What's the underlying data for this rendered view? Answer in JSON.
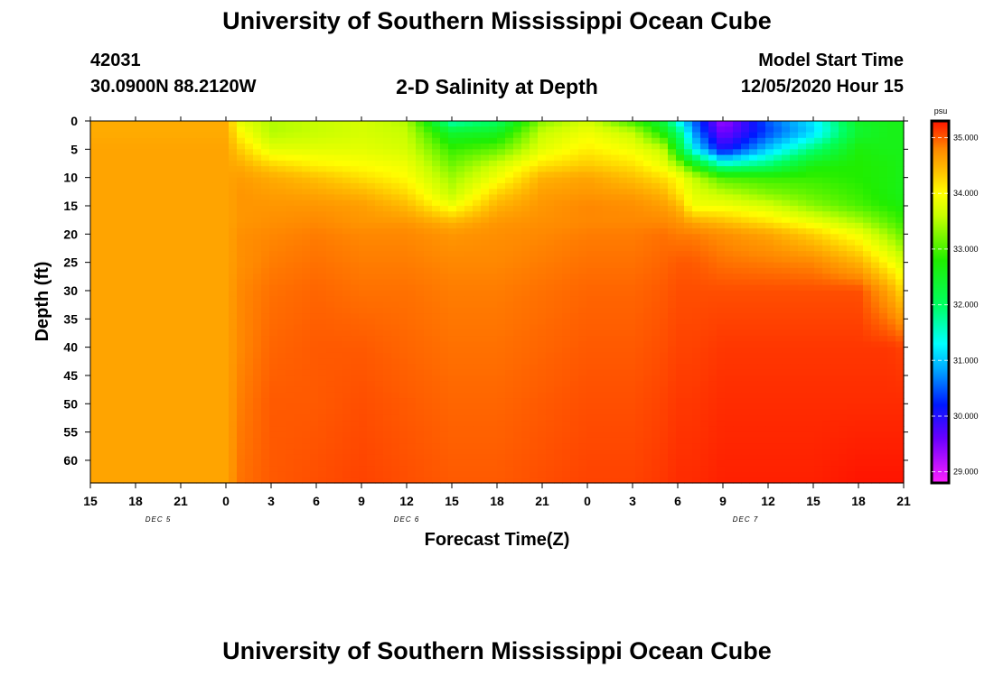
{
  "header": {
    "title": "University of Southern Mississippi Ocean Cube",
    "station_id": "42031",
    "coords": "30.0900N 88.2120W",
    "subtitle": "2-D Salinity at Depth",
    "model_start_label": "Model Start Time",
    "model_start_value": "12/05/2020 Hour 15"
  },
  "footer": {
    "title": "University of Southern Mississippi Ocean Cube"
  },
  "chart_data": {
    "type": "heatmap",
    "title": "2-D Salinity at Depth",
    "xlabel": "Forecast Time(Z)",
    "ylabel": "Depth (ft)",
    "x_tick_labels": [
      "15",
      "18",
      "21",
      "0",
      "3",
      "6",
      "9",
      "12",
      "15",
      "18",
      "21",
      "0",
      "3",
      "6",
      "9",
      "12",
      "15",
      "18",
      "21"
    ],
    "x_hours": [
      0,
      3,
      6,
      9,
      12,
      15,
      18,
      21,
      24,
      27,
      30,
      33,
      36,
      39,
      42,
      45,
      48,
      51,
      54
    ],
    "day_labels": [
      {
        "text": "DEC 5",
        "hour": 4.5
      },
      {
        "text": "DEC 6",
        "hour": 21
      },
      {
        "text": "DEC 7",
        "hour": 43.5
      }
    ],
    "y_ticks": [
      0,
      5,
      10,
      15,
      20,
      25,
      30,
      35,
      40,
      45,
      50,
      55,
      60
    ],
    "y_range": [
      0,
      64
    ],
    "x_range": [
      0,
      54
    ],
    "colorbar": {
      "unit": "psu",
      "range": [
        28.8,
        35.3
      ],
      "ticks": [
        "29.000",
        "30.000",
        "31.000",
        "32.000",
        "33.000",
        "34.000",
        "35.000"
      ],
      "tick_values": [
        29,
        30,
        31,
        32,
        33,
        34,
        35
      ],
      "stops": [
        {
          "v": 28.8,
          "c": "#ff20ff"
        },
        {
          "v": 29.6,
          "c": "#6a00ff"
        },
        {
          "v": 30.2,
          "c": "#0018ff"
        },
        {
          "v": 30.8,
          "c": "#00a0ff"
        },
        {
          "v": 31.3,
          "c": "#00ffff"
        },
        {
          "v": 32.0,
          "c": "#00ff60"
        },
        {
          "v": 32.8,
          "c": "#20ee00"
        },
        {
          "v": 33.6,
          "c": "#c8ff00"
        },
        {
          "v": 34.0,
          "c": "#ffff00"
        },
        {
          "v": 34.4,
          "c": "#ffc000"
        },
        {
          "v": 34.8,
          "c": "#ff8800"
        },
        {
          "v": 35.3,
          "c": "#ff1400"
        }
      ]
    },
    "salinity_field": {
      "depth_ft": [
        0,
        2,
        5,
        8,
        10,
        13,
        15,
        18,
        20,
        25,
        30,
        40,
        50,
        64
      ],
      "hours": [
        0,
        9,
        10,
        12,
        15,
        18,
        21,
        24,
        27,
        30,
        33,
        36,
        38,
        39,
        40,
        42,
        45,
        48,
        51,
        53,
        54
      ],
      "values": [
        [
          34.55,
          34.55,
          33.8,
          33.5,
          33.6,
          33.7,
          33.5,
          31.6,
          32.0,
          33.3,
          33.7,
          32.9,
          32.3,
          31.3,
          30.6,
          29.3,
          30.5,
          31.2,
          32.5,
          32.6,
          32.6
        ],
        [
          34.55,
          34.55,
          34.0,
          33.5,
          33.6,
          33.7,
          33.6,
          32.4,
          32.5,
          33.6,
          33.9,
          33.6,
          32.7,
          32.0,
          30.8,
          29.5,
          30.4,
          31.1,
          32.4,
          32.6,
          32.6
        ],
        [
          34.6,
          34.6,
          34.3,
          33.8,
          33.8,
          33.8,
          33.7,
          32.9,
          33.1,
          33.8,
          34.1,
          33.9,
          33.6,
          32.5,
          31.3,
          30.0,
          31.0,
          31.9,
          32.7,
          32.6,
          32.6
        ],
        [
          34.6,
          34.6,
          34.55,
          34.3,
          34.1,
          34.0,
          33.9,
          33.2,
          33.7,
          34.2,
          34.35,
          34.2,
          33.9,
          33.5,
          32.8,
          31.7,
          32.0,
          32.7,
          32.8,
          32.7,
          32.6
        ],
        [
          34.6,
          34.6,
          34.65,
          34.55,
          34.4,
          34.2,
          34.0,
          33.4,
          33.9,
          34.5,
          34.6,
          34.4,
          34.2,
          34.0,
          33.6,
          33.0,
          32.9,
          32.9,
          32.8,
          32.7,
          32.6
        ],
        [
          34.6,
          34.6,
          34.7,
          34.65,
          34.6,
          34.5,
          34.25,
          33.6,
          34.3,
          34.65,
          34.7,
          34.65,
          34.5,
          34.2,
          33.8,
          33.6,
          33.3,
          33.1,
          32.9,
          32.7,
          32.6
        ],
        [
          34.6,
          34.6,
          34.7,
          34.7,
          34.7,
          34.65,
          34.45,
          33.9,
          34.5,
          34.7,
          34.8,
          34.75,
          34.65,
          34.5,
          33.9,
          33.9,
          33.7,
          33.3,
          33.0,
          32.8,
          32.7
        ],
        [
          34.6,
          34.6,
          34.7,
          34.75,
          34.8,
          34.7,
          34.7,
          34.5,
          34.7,
          34.75,
          34.8,
          34.8,
          34.8,
          34.75,
          34.6,
          34.45,
          34.2,
          33.9,
          33.5,
          33.1,
          32.9
        ],
        [
          34.6,
          34.6,
          34.75,
          34.8,
          34.85,
          34.8,
          34.8,
          34.7,
          34.75,
          34.8,
          34.85,
          34.85,
          34.9,
          34.85,
          34.85,
          34.75,
          34.6,
          34.3,
          33.9,
          33.4,
          33.1
        ],
        [
          34.6,
          34.6,
          34.75,
          34.85,
          34.9,
          34.85,
          34.85,
          34.8,
          34.8,
          34.85,
          34.9,
          34.9,
          34.95,
          35.0,
          35.0,
          34.9,
          34.85,
          34.8,
          34.5,
          34.0,
          33.7
        ],
        [
          34.6,
          34.6,
          34.8,
          34.9,
          34.95,
          34.9,
          34.9,
          34.85,
          34.85,
          34.9,
          34.95,
          34.95,
          35.0,
          35.05,
          35.05,
          35.05,
          35.05,
          35.05,
          35.05,
          34.6,
          34.2
        ],
        [
          34.6,
          34.6,
          34.8,
          34.95,
          35.0,
          35.0,
          34.95,
          34.9,
          34.9,
          34.95,
          35.0,
          35.0,
          35.05,
          35.1,
          35.1,
          35.15,
          35.15,
          35.15,
          35.15,
          35.15,
          35.1
        ],
        [
          34.6,
          34.6,
          34.85,
          35.0,
          35.0,
          35.05,
          35.0,
          34.95,
          34.95,
          35.0,
          35.05,
          35.05,
          35.1,
          35.15,
          35.15,
          35.2,
          35.2,
          35.2,
          35.2,
          35.2,
          35.2
        ],
        [
          34.6,
          34.6,
          34.9,
          35.0,
          35.05,
          35.1,
          35.05,
          35.0,
          35.0,
          35.05,
          35.1,
          35.1,
          35.15,
          35.2,
          35.2,
          35.25,
          35.25,
          35.25,
          35.3,
          35.3,
          35.3
        ]
      ]
    }
  }
}
